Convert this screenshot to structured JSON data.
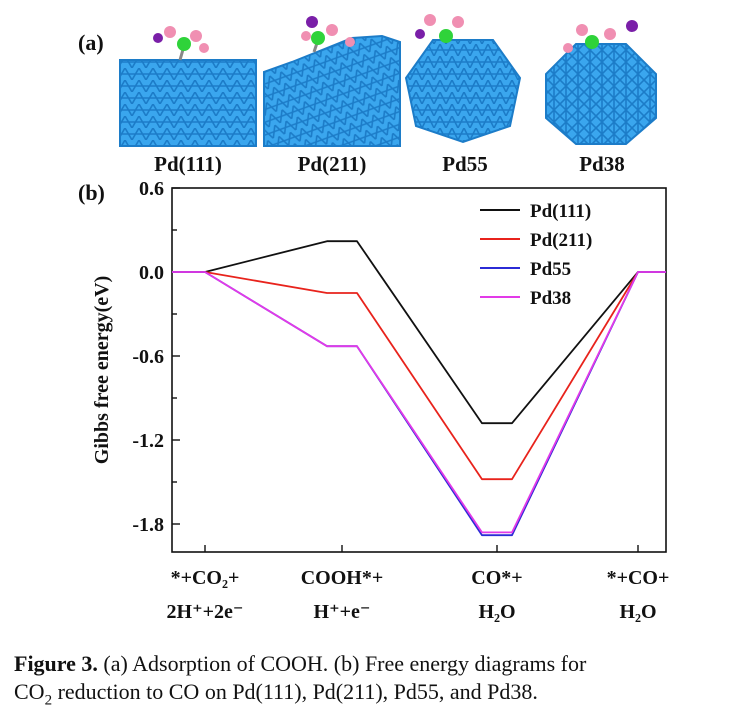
{
  "panel_a": {
    "letter": "(a)",
    "images": [
      {
        "label": "Pd(111)"
      },
      {
        "label": "Pd(211)"
      },
      {
        "label": "Pd55"
      },
      {
        "label": "Pd38"
      }
    ]
  },
  "panel_b": {
    "letter": "(b)"
  },
  "caption": {
    "lead": "Figure 3.",
    "line1": "(a) Adsorption of COOH. (b) Free energy diagrams for",
    "line2_pre": "CO",
    "line2_sub": "2",
    "line2_post": " reduction to CO on Pd(111), Pd(211), Pd55, and Pd38."
  },
  "colors": {
    "Pd(111)": "#111111",
    "Pd(211)": "#e8231c",
    "Pd55": "#2b2bd6",
    "Pd38": "#e23ae8",
    "metal": "#2f9be6",
    "carbon": "#2fd33a",
    "oxygen": "#f08fb2",
    "hydrogen": "#7a1fa8"
  },
  "chart_data": {
    "type": "line",
    "ylabel": "Gibbs free energy(eV)",
    "ylim": [
      -2.0,
      0.6
    ],
    "yticks": [
      "0.6",
      "0.0",
      "-0.6",
      "-1.2",
      "-1.8"
    ],
    "ytick_values": [
      0.6,
      0.0,
      -0.6,
      -1.2,
      -1.8
    ],
    "categories": [
      {
        "line1": "*+CO₂+",
        "line2": "2H⁺+2e⁻"
      },
      {
        "line1": "COOH*+",
        "line2": "H⁺+e⁻"
      },
      {
        "line1": "CO*+",
        "line2": "H₂O"
      },
      {
        "line1": "*+CO+",
        "line2": "H₂O"
      }
    ],
    "legend_position": "top-right",
    "series": [
      {
        "name": "Pd(111)",
        "values": [
          0.0,
          0.22,
          -1.08,
          0.0
        ]
      },
      {
        "name": "Pd(211)",
        "values": [
          0.0,
          -0.15,
          -1.48,
          0.0
        ]
      },
      {
        "name": "Pd55",
        "values": [
          0.0,
          -0.53,
          -1.88,
          0.0
        ]
      },
      {
        "name": "Pd38",
        "values": [
          0.0,
          -0.53,
          -1.86,
          0.0
        ]
      }
    ]
  }
}
